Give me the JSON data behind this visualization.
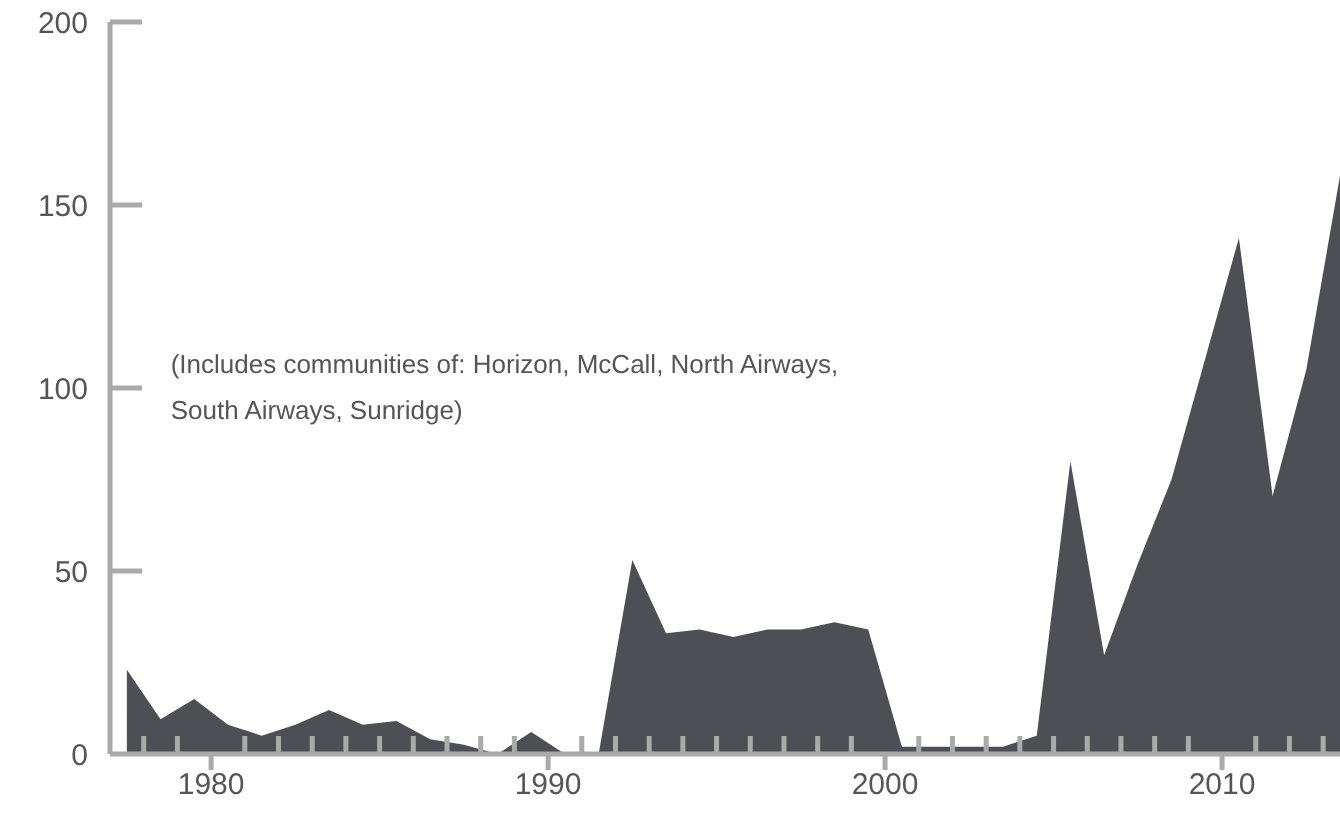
{
  "chart_data": {
    "type": "area",
    "color": "#4d4f54",
    "x": [
      1977.5,
      1978.5,
      1979.5,
      1980.5,
      1981.5,
      1982.5,
      1983.5,
      1984.5,
      1985.5,
      1986.5,
      1987.5,
      1988.5,
      1989.5,
      1990.5,
      1991.5,
      1992.5,
      1993.5,
      1994.5,
      1995.5,
      1996.5,
      1997.5,
      1998.5,
      1999.5,
      2000.5,
      2001.5,
      2002.5,
      2003.5,
      2004.5,
      2005.5,
      2006.5,
      2007.5,
      2008.5,
      2009.5,
      2010.5,
      2011.5,
      2012.5,
      2013.5
    ],
    "values": [
      23,
      9.5,
      15,
      8,
      5,
      8,
      12,
      8,
      9,
      4,
      2.5,
      0,
      6,
      0,
      0,
      53,
      33,
      34,
      32,
      34,
      34,
      36,
      34,
      2,
      2,
      2,
      2,
      5,
      80,
      27,
      52,
      75,
      108,
      141,
      70.5,
      105,
      158
    ],
    "xlim": [
      1977,
      2013.5
    ],
    "xticks": [
      {
        "value": 1978,
        "label": null
      },
      {
        "value": 1979,
        "label": null
      },
      1980,
      {
        "value": 1981,
        "label": null
      },
      {
        "value": 1982,
        "label": null
      },
      {
        "value": 1983,
        "label": null
      },
      {
        "value": 1984,
        "label": null
      },
      {
        "value": 1985,
        "label": null
      },
      {
        "value": 1986,
        "label": null
      },
      {
        "value": 1987,
        "label": null
      },
      {
        "value": 1988,
        "label": null
      },
      {
        "value": 1989,
        "label": null
      },
      1990,
      {
        "value": 1991,
        "label": null
      },
      {
        "value": 1992,
        "label": null
      },
      {
        "value": 1993,
        "label": null
      },
      {
        "value": 1994,
        "label": null
      },
      {
        "value": 1995,
        "label": null
      },
      {
        "value": 1996,
        "label": null
      },
      {
        "value": 1997,
        "label": null
      },
      {
        "value": 1998,
        "label": null
      },
      {
        "value": 1999,
        "label": null
      },
      2000,
      {
        "value": 2001,
        "label": null
      },
      {
        "value": 2002,
        "label": null
      },
      {
        "value": 2003,
        "label": null
      },
      {
        "value": 2004,
        "label": null
      },
      {
        "value": 2005,
        "label": null
      },
      {
        "value": 2006,
        "label": null
      },
      {
        "value": 2007,
        "label": null
      },
      {
        "value": 2008,
        "label": null
      },
      {
        "value": 2009,
        "label": null
      },
      2010,
      {
        "value": 2011,
        "label": null
      },
      {
        "value": 2012,
        "label": null
      },
      {
        "value": 2013,
        "label": null
      }
    ],
    "ylim": [
      0,
      200
    ],
    "yticks": [
      0,
      50,
      100,
      150,
      200
    ],
    "annotations": [
      "(Includes communities of: Horizon, McCall, North Airways, South Airways, Sunridge)"
    ]
  }
}
